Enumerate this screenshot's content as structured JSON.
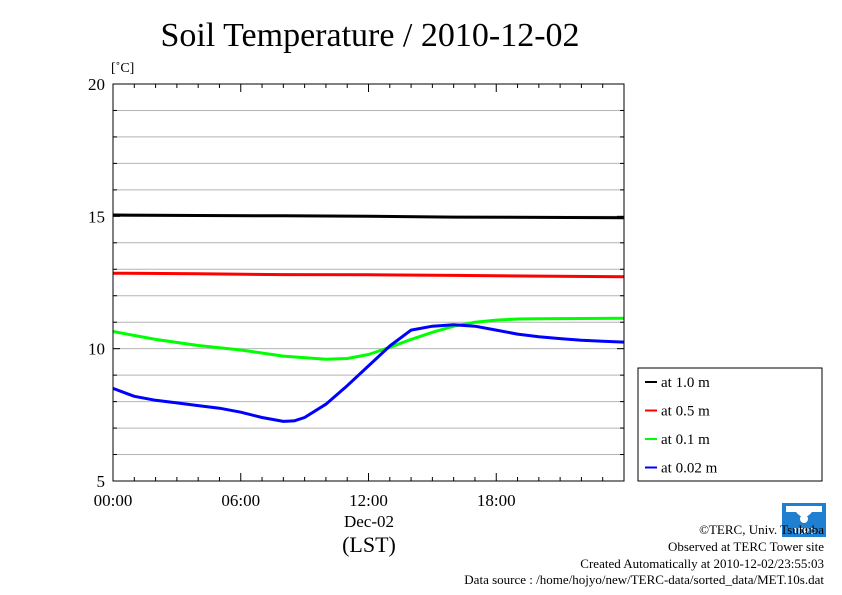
{
  "chart_data": {
    "type": "line",
    "title": "Soil Temperature / 2010-12-02",
    "unit_label": "[˚C]",
    "ylim": [
      5,
      20
    ],
    "y_ticks": [
      "20",
      "15",
      "10",
      "5"
    ],
    "y_tick_values": [
      20,
      15,
      10,
      5
    ],
    "xlim": [
      0,
      24
    ],
    "x_tick_labels": [
      "00:00",
      "06:00",
      "12:00",
      "18:00"
    ],
    "x_tick_values": [
      0,
      6,
      12,
      18
    ],
    "date_label": "Dec-02",
    "xlabel": "(LST)",
    "grid": true,
    "legend_position": "right",
    "series": [
      {
        "name": "at 1.0 m",
        "color": "#000000",
        "x": [
          0,
          4,
          8,
          12,
          16,
          20,
          24
        ],
        "values": [
          15.05,
          15.03,
          15.02,
          15.0,
          14.97,
          14.96,
          14.95
        ]
      },
      {
        "name": "at 0.5 m",
        "color": "#ff0000",
        "x": [
          0,
          4,
          8,
          12,
          16,
          20,
          24
        ],
        "values": [
          12.85,
          12.83,
          12.8,
          12.79,
          12.77,
          12.74,
          12.72
        ]
      },
      {
        "name": "at 0.1 m",
        "color": "#00ff00",
        "x": [
          0,
          2,
          4,
          6,
          8,
          10,
          11,
          12,
          13,
          14,
          15,
          16,
          17,
          18,
          19,
          20,
          22,
          24
        ],
        "values": [
          10.65,
          10.35,
          10.12,
          9.95,
          9.72,
          9.6,
          9.63,
          9.78,
          10.05,
          10.35,
          10.62,
          10.85,
          11.0,
          11.08,
          11.12,
          11.13,
          11.14,
          11.15
        ]
      },
      {
        "name": "at 0.02 m",
        "color": "#0000ff",
        "x": [
          0,
          1,
          2,
          3,
          4,
          5,
          6,
          7,
          8,
          8.5,
          9,
          10,
          11,
          12,
          13,
          14,
          15,
          16,
          17,
          18,
          19,
          20,
          21,
          22,
          23,
          24
        ],
        "values": [
          8.5,
          8.2,
          8.05,
          7.95,
          7.85,
          7.75,
          7.6,
          7.4,
          7.25,
          7.27,
          7.4,
          7.9,
          8.6,
          9.35,
          10.1,
          10.7,
          10.85,
          10.9,
          10.85,
          10.7,
          10.55,
          10.45,
          10.38,
          10.32,
          10.28,
          10.25
        ]
      }
    ]
  },
  "credits": {
    "copyright": "©TERC, Univ. Tsukuba",
    "observed": "Observed at TERC Tower site",
    "created": "Created Automatically at 2010-12-02/23:55:03",
    "source": "Data source : /home/hojyo/new/TERC-data/sorted_data/MET.10s.dat",
    "logo_text": "TERC"
  }
}
